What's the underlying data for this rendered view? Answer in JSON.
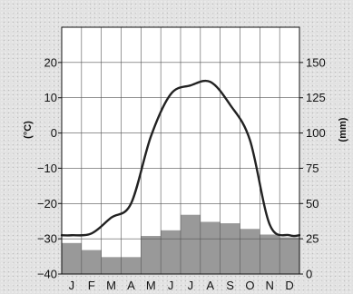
{
  "chart_data": {
    "type": "climate",
    "categories": [
      "J",
      "F",
      "M",
      "A",
      "M",
      "J",
      "J",
      "A",
      "S",
      "O",
      "N",
      "D"
    ],
    "temperature_axis": {
      "label": "(°C)",
      "ylim": [
        -40,
        30
      ],
      "ticks": [
        20,
        10,
        0,
        -10,
        -20,
        -30,
        -40
      ]
    },
    "precipitation_axis": {
      "label": "(mm)",
      "ylim": [
        0,
        175
      ],
      "ticks": [
        150,
        125,
        100,
        75,
        50,
        25,
        0
      ]
    },
    "series": [
      {
        "kind": "line",
        "axis": "temperature",
        "values": [
          -29,
          -28.5,
          -24,
          -20,
          -1,
          11,
          13.5,
          14.5,
          8,
          -2,
          -26,
          -29
        ]
      },
      {
        "kind": "bar",
        "axis": "precipitation",
        "values": [
          22,
          17,
          12,
          12,
          27,
          31,
          42,
          37,
          36,
          32,
          28,
          26
        ]
      }
    ],
    "grid": true,
    "colors": {
      "bars": "#999999",
      "line": "#222222",
      "plot_background": "#ffffff",
      "page_background": "#e2e2e2"
    }
  }
}
